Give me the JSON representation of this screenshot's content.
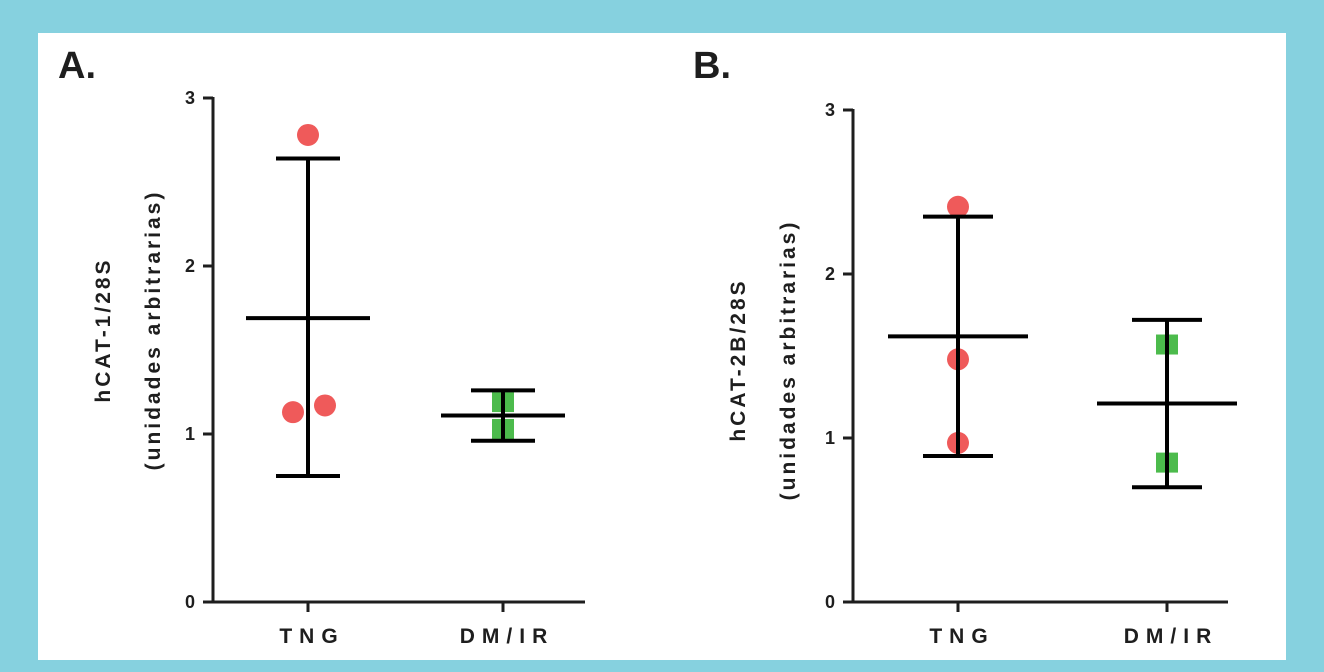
{
  "chart_data": [
    {
      "type": "scatter",
      "panel_label": "A.",
      "ylabel_line1": "hCAT-1/28S",
      "ylabel_line2": "(unidades arbitrarias)",
      "ylim": [
        0,
        3
      ],
      "yticks": [
        "0",
        "1",
        "2",
        "3"
      ],
      "categories": [
        "TNG",
        "DM/IR"
      ],
      "groups": [
        {
          "category": "TNG",
          "marker": "circle",
          "color": "#ef5a5a",
          "points": [
            2.78,
            1.13,
            1.17
          ],
          "mean": 1.69,
          "err_low": 0.75,
          "err_high": 2.64
        },
        {
          "category": "DM/IR",
          "marker": "square",
          "color": "#4cbb4c",
          "points": [
            1.19,
            1.03
          ],
          "mean": 1.11,
          "err_low": 0.96,
          "err_high": 1.26
        }
      ]
    },
    {
      "type": "scatter",
      "panel_label": "B.",
      "ylabel_line1": "hCAT-2B/28S",
      "ylabel_line2": "(unidades arbitrarias)",
      "ylim": [
        0,
        3
      ],
      "yticks": [
        "0",
        "1",
        "2",
        "3"
      ],
      "categories": [
        "TNG",
        "DM/IR"
      ],
      "groups": [
        {
          "category": "TNG",
          "marker": "circle",
          "color": "#ef5a5a",
          "points": [
            2.41,
            1.48,
            0.97
          ],
          "mean": 1.62,
          "err_low": 0.89,
          "err_high": 2.35
        },
        {
          "category": "DM/IR",
          "marker": "square",
          "color": "#4cbb4c",
          "points": [
            1.57,
            0.85
          ],
          "mean": 1.21,
          "err_low": 0.7,
          "err_high": 1.72
        }
      ]
    }
  ]
}
